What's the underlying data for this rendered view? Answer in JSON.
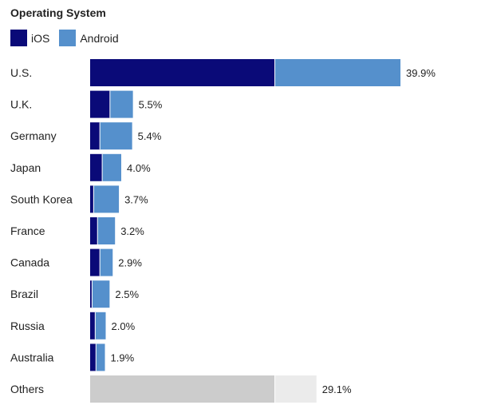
{
  "chart_data": {
    "type": "bar",
    "orientation": "horizontal",
    "stacked": true,
    "title": "Operating System",
    "legend": [
      {
        "name": "iOS",
        "color": "#0a0a78"
      },
      {
        "name": "Android",
        "color": "#5590cc"
      }
    ],
    "categories": [
      "U.S.",
      "U.K.",
      "Germany",
      "Japan",
      "South Korea",
      "France",
      "Canada",
      "Brazil",
      "Russia",
      "Australia",
      "Others"
    ],
    "totals": [
      39.9,
      5.5,
      5.4,
      4.0,
      3.7,
      3.2,
      2.9,
      2.5,
      2.0,
      1.9,
      29.1
    ],
    "total_labels": [
      "39.9%",
      "5.5%",
      "5.4%",
      "4.0%",
      "3.7%",
      "3.2%",
      "2.9%",
      "2.5%",
      "2.0%",
      "1.9%",
      "29.1%"
    ],
    "series": [
      {
        "name": "iOS",
        "values": [
          23.8,
          2.6,
          1.3,
          1.6,
          0.5,
          1.0,
          1.3,
          0.3,
          0.7,
          0.8,
          23.8
        ]
      },
      {
        "name": "Android",
        "values": [
          16.1,
          2.9,
          4.1,
          2.4,
          3.2,
          2.2,
          1.6,
          2.2,
          1.3,
          1.1,
          5.3
        ]
      }
    ],
    "others_colors": [
      "#cccccc",
      "#ebebeb"
    ],
    "xlim": [
      0,
      40
    ]
  }
}
